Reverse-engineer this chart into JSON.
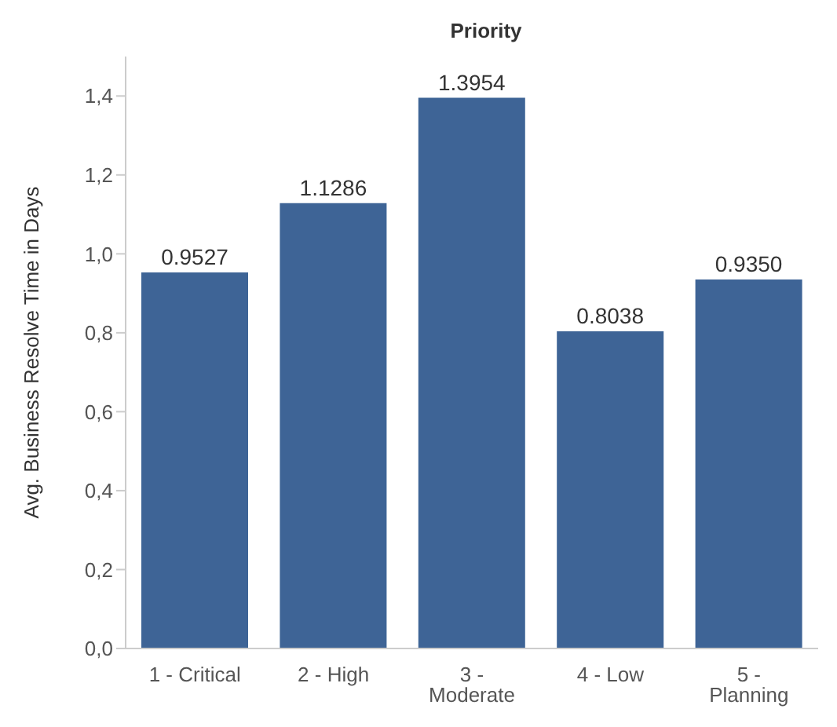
{
  "chart_data": {
    "type": "bar",
    "title": "Priority",
    "ylabel": "Avg. Business Resolve Time in Days",
    "categories": [
      "1 - Critical",
      "2 - High",
      "3 - Moderate",
      "4 - Low",
      "5 - Planning"
    ],
    "values": [
      0.9527,
      1.1286,
      1.3954,
      0.8038,
      0.935
    ],
    "color": "#3e6496",
    "value_labels": [
      "0.9527",
      "1.1286",
      "1.3954",
      "0.8038",
      "0.9350"
    ],
    "ylim": [
      0,
      1.5
    ],
    "yticks": [
      {
        "value": 0,
        "label": "0,0"
      },
      {
        "value": 0.2,
        "label": "0,2"
      },
      {
        "value": 0.4,
        "label": "0,4"
      },
      {
        "value": 0.6,
        "label": "0,6"
      },
      {
        "value": 0.8,
        "label": "0,8"
      },
      {
        "value": 1,
        "label": "1,0"
      },
      {
        "value": 1.2,
        "label": "1,2"
      },
      {
        "value": 1.4,
        "label": "1,4"
      }
    ],
    "grid": false
  }
}
